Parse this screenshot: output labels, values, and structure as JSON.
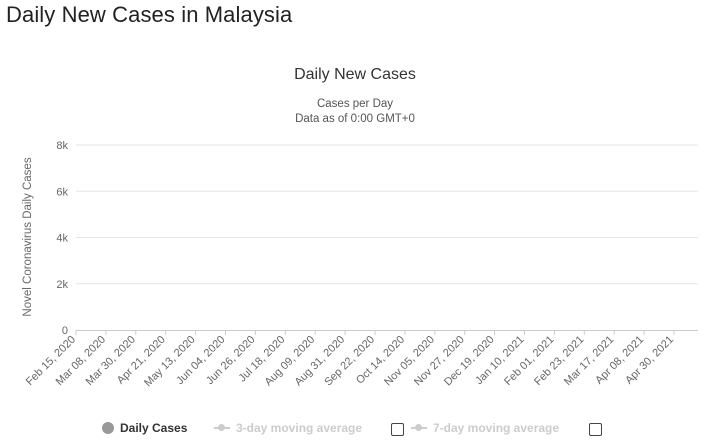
{
  "page": {
    "heading": "Daily New Cases in Malaysia"
  },
  "chart_data": {
    "type": "bar",
    "title": "Daily New Cases",
    "subtitle_lines": [
      "Cases per Day",
      "Data as of 0:00 GMT+0"
    ],
    "ylabel": "Novel Coronavirus Daily Cases",
    "xlabel": "",
    "ylim": [
      0,
      8000
    ],
    "y_ticks": [
      0,
      2000,
      4000,
      6000,
      8000
    ],
    "y_tick_labels": [
      "0",
      "2k",
      "4k",
      "6k",
      "8k"
    ],
    "x_tick_labels": [
      "Feb 15, 2020",
      "Mar 08, 2020",
      "Mar 30, 2020",
      "Apr 21, 2020",
      "May 13, 2020",
      "Jun 04, 2020",
      "Jun 26, 2020",
      "Jul 18, 2020",
      "Aug 09, 2020",
      "Aug 31, 2020",
      "Sep 22, 2020",
      "Oct 14, 2020",
      "Nov 05, 2020",
      "Nov 27, 2020",
      "Dec 19, 2020",
      "Jan 10, 2021",
      "Feb 01, 2021",
      "Feb 23, 2021",
      "Mar 17, 2021",
      "Apr 08, 2021",
      "Apr 30, 2021"
    ],
    "grid": true,
    "legend_position": "bottom",
    "bar_color": "#999999",
    "series": [
      {
        "name": "Daily Cases",
        "values": [
          0,
          0,
          0,
          0,
          0,
          0,
          0,
          0,
          0,
          0,
          0,
          0,
          0,
          0,
          0,
          0,
          0,
          0,
          0,
          0,
          0,
          0,
          0,
          0,
          0,
          0,
          0,
          0,
          0,
          0,
          0,
          0,
          0,
          0,
          0,
          0,
          0,
          0,
          0,
          0,
          0,
          0,
          0,
          0,
          0,
          0,
          0,
          0,
          0,
          0,
          0,
          0,
          0,
          0,
          0,
          0,
          0,
          0,
          0,
          0,
          0,
          0,
          0,
          0,
          0,
          0,
          0,
          0,
          0,
          0,
          0,
          0,
          0,
          0,
          0,
          0,
          0,
          0,
          0,
          0,
          0,
          0,
          0,
          0,
          0,
          0,
          0,
          0,
          0,
          0,
          0,
          0,
          0,
          0,
          0,
          0,
          0,
          0,
          0,
          0,
          0,
          0,
          0,
          0,
          0,
          0,
          0,
          0,
          0,
          0,
          0,
          0,
          0,
          0,
          0,
          0,
          0,
          0,
          0,
          0,
          0,
          0,
          0,
          0,
          0,
          0,
          0,
          0,
          0,
          0,
          0,
          0,
          0,
          0,
          0,
          0,
          0,
          0,
          0,
          0,
          0,
          0,
          0,
          0,
          0,
          0,
          0,
          0,
          0,
          0,
          0,
          0,
          0,
          0,
          0,
          0,
          0,
          0,
          0,
          0,
          0,
          0,
          0,
          0,
          0,
          0,
          0,
          0,
          0,
          0,
          0,
          0,
          0,
          0,
          0,
          0,
          0,
          0,
          0,
          0,
          0,
          0,
          0,
          0,
          0,
          0,
          0,
          0,
          0,
          0,
          0,
          0,
          0,
          0,
          0,
          0,
          0,
          0,
          0,
          0,
          0,
          0,
          0,
          0,
          0,
          0,
          0,
          0,
          0,
          0,
          0,
          0,
          0,
          0,
          0,
          0,
          0,
          0,
          0,
          0,
          0,
          0,
          0,
          0,
          0,
          0,
          0,
          0,
          0,
          0,
          0,
          0,
          0,
          0,
          0,
          0,
          0,
          0,
          0,
          0,
          0,
          0,
          0,
          0,
          0,
          0,
          0,
          0,
          0,
          0,
          0,
          0,
          0,
          0,
          0,
          0,
          0,
          0,
          0,
          0,
          0,
          0,
          0,
          0,
          0,
          0,
          0,
          0,
          0,
          0,
          0,
          0,
          0,
          0,
          0,
          0,
          0,
          0,
          0,
          0,
          0,
          0,
          0,
          0,
          0,
          0,
          0,
          0,
          0,
          0,
          0,
          0,
          0,
          0,
          0,
          0,
          0,
          0,
          0,
          0,
          0,
          0,
          0,
          0,
          0,
          0,
          0,
          0,
          0,
          0,
          0,
          0,
          0,
          0,
          0,
          0,
          0,
          0,
          0,
          0,
          0,
          0,
          0,
          0,
          0,
          0,
          0,
          0,
          0,
          0,
          0,
          0,
          0,
          0,
          0,
          0,
          0,
          0,
          0,
          0,
          0,
          0,
          0,
          0,
          0,
          0,
          0,
          0,
          0,
          0,
          0,
          0,
          0,
          0,
          0,
          0,
          0,
          0,
          0,
          0,
          0,
          0,
          0,
          0,
          0,
          0,
          0,
          0,
          0,
          0,
          0,
          0,
          0,
          0,
          0,
          0,
          0,
          0,
          0,
          0,
          0,
          0,
          0,
          0,
          0,
          0,
          0,
          0,
          0,
          0,
          0,
          0,
          0,
          0,
          0,
          0,
          0,
          0,
          0,
          0,
          0,
          0,
          0,
          0,
          0,
          0,
          0,
          0,
          0,
          0,
          0,
          0,
          0,
          0,
          0,
          0,
          0,
          0,
          0,
          0,
          0,
          0,
          0,
          0,
          0,
          0,
          0,
          0,
          0,
          0,
          0,
          0,
          0,
          0,
          0,
          0,
          0,
          0,
          0,
          0,
          0,
          0,
          0,
          0,
          0,
          0,
          0,
          0,
          0,
          0,
          0,
          0,
          0,
          0,
          0,
          0,
          0,
          0,
          0,
          0,
          0,
          0,
          0,
          0,
          0,
          0,
          0,
          0,
          0,
          0,
          0,
          0,
          0,
          0,
          0,
          0,
          0,
          0,
          0,
          0,
          0,
          0,
          0,
          0,
          0,
          0,
          0,
          0,
          0,
          0,
          0,
          0,
          0,
          0,
          0,
          0,
          0,
          0,
          0,
          0,
          0,
          0,
          0,
          0,
          0,
          0,
          0,
          0
        ]
      }
    ]
  },
  "legend": {
    "daily_label": "Daily Cases",
    "ma3_label": "3-day moving average",
    "ma7_label": "7-day moving average"
  },
  "colors": {
    "bars": "#999999",
    "grid": "#e6e6e6",
    "legend_disabled": "#cccccc"
  }
}
